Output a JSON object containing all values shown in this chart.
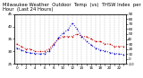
{
  "title": "Milwaukee Weather  Outdoor  Temp  (vs)  THSW Index  per Hour  (Last 24 Hours)",
  "hours": [
    0,
    1,
    2,
    3,
    4,
    5,
    6,
    7,
    8,
    9,
    10,
    11,
    12,
    13,
    14,
    15,
    16,
    17,
    18,
    19,
    20,
    21,
    22,
    23
  ],
  "temp": [
    33,
    32,
    31,
    31,
    30,
    30,
    30,
    31,
    33,
    35,
    36,
    36,
    36,
    37,
    36,
    36,
    35,
    34,
    34,
    33,
    33,
    32,
    32,
    32
  ],
  "thsw": [
    22,
    18,
    14,
    12,
    11,
    10,
    11,
    16,
    28,
    42,
    52,
    58,
    72,
    60,
    45,
    36,
    28,
    22,
    18,
    16,
    13,
    11,
    10,
    9
  ],
  "temp_color": "#cc0000",
  "thsw_color": "#0000cc",
  "bg_color": "#ffffff",
  "grid_color": "#999999",
  "ylim_left": [
    25,
    45
  ],
  "ylim_right": [
    -10,
    90
  ],
  "title_fontsize": 3.8,
  "tick_fontsize": 3.0,
  "figwidth": 1.6,
  "figheight": 0.87,
  "dpi": 100
}
